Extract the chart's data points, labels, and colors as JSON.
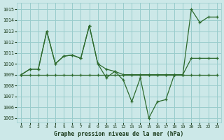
{
  "title": "Graphe pression niveau de la mer (hPa)",
  "bg_color": "#cce8e8",
  "grid_color": "#99cccc",
  "line_color": "#2d6a2d",
  "xlim": [
    -0.5,
    23.5
  ],
  "ylim": [
    1004.6,
    1015.6
  ],
  "yticks": [
    1005,
    1006,
    1007,
    1008,
    1009,
    1010,
    1011,
    1012,
    1013,
    1014,
    1015
  ],
  "xticks": [
    0,
    1,
    2,
    3,
    4,
    5,
    6,
    7,
    8,
    9,
    10,
    11,
    12,
    13,
    14,
    15,
    16,
    17,
    18,
    19,
    20,
    21,
    22,
    23
  ],
  "series1_x": [
    0,
    1,
    2,
    3,
    4,
    5,
    6,
    7,
    8,
    9,
    10,
    11,
    12,
    13,
    14,
    15,
    16,
    17,
    18,
    19,
    20,
    21,
    22,
    23
  ],
  "series1_y": [
    1009.0,
    1009.0,
    1009.0,
    1009.0,
    1009.0,
    1009.0,
    1009.0,
    1009.0,
    1009.0,
    1009.0,
    1009.0,
    1009.0,
    1009.0,
    1009.0,
    1009.0,
    1009.0,
    1009.0,
    1009.0,
    1009.0,
    1009.0,
    1009.0,
    1009.0,
    1009.0,
    1009.0
  ],
  "series2_x": [
    0,
    1,
    2,
    3,
    4,
    5,
    6,
    7,
    8,
    9,
    10,
    11,
    12,
    13,
    14,
    15,
    16,
    17,
    18,
    19,
    20,
    21,
    22,
    23
  ],
  "series2_y": [
    1009.0,
    1009.5,
    1009.5,
    1013.0,
    1010.0,
    1010.7,
    1010.8,
    1010.5,
    1013.5,
    1010.0,
    1009.5,
    1009.3,
    1009.0,
    1009.0,
    1009.0,
    1009.0,
    1009.0,
    1009.0,
    1009.0,
    1009.0,
    1010.5,
    1010.5,
    1010.5,
    1010.5
  ],
  "series3_x": [
    0,
    1,
    2,
    3,
    4,
    5,
    6,
    7,
    8,
    9,
    10,
    11,
    12,
    13,
    14,
    15,
    16,
    17,
    18,
    19,
    20,
    21,
    22,
    23
  ],
  "series3_y": [
    1009.0,
    1009.5,
    1009.5,
    1013.0,
    1010.0,
    1010.7,
    1010.8,
    1010.5,
    1013.5,
    1010.0,
    1008.7,
    1009.3,
    1008.5,
    1006.5,
    1008.7,
    1005.0,
    1006.5,
    1006.7,
    1009.0,
    1009.0,
    1015.0,
    1013.8,
    1014.3,
    1014.3
  ]
}
